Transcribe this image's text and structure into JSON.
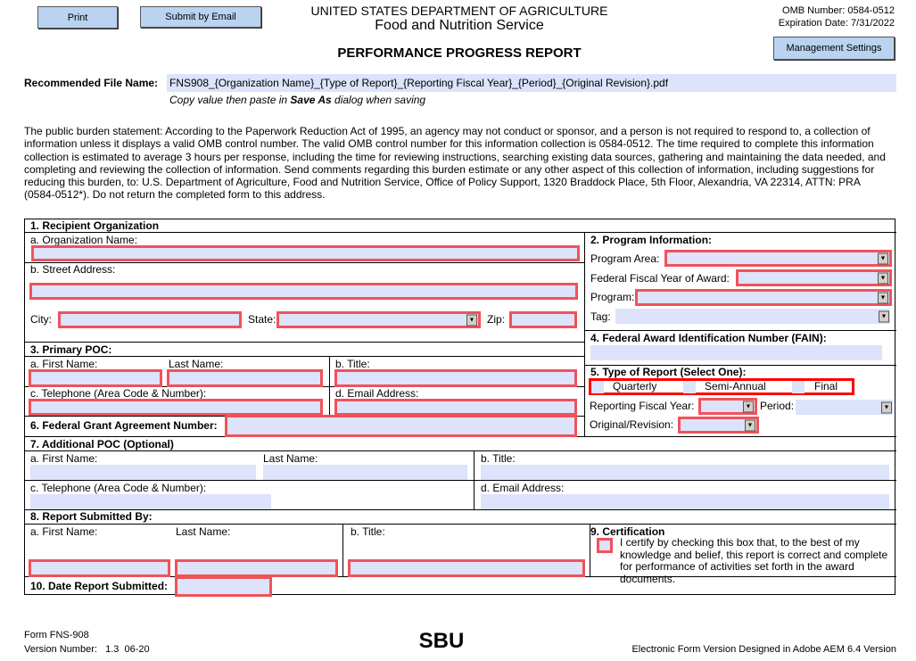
{
  "header": {
    "print": "Print",
    "submit_email": "Submit by Email",
    "dept": "UNITED STATES DEPARTMENT OF AGRICULTURE",
    "agency": "Food and Nutrition Service",
    "title": "PERFORMANCE PROGRESS REPORT",
    "omb": "OMB Number: 0584-0512",
    "expiration": "Expiration Date: 7/31/2022",
    "mgmt": "Management Settings"
  },
  "file": {
    "label": "Recommended File Name:",
    "value": "FNS908_{Organization Name}_{Type of Report}_{Reporting Fiscal Year}_{Period}_{Original Revision}.pdf",
    "note_pre": "Copy value then paste in ",
    "note_bold": "Save As",
    "note_post": " dialog when saving"
  },
  "burden": "The public burden statement: According to the Paperwork Reduction Act of 1995, an agency may not conduct or sponsor, and a person is not required to respond to, a collection of information unless it displays a valid OMB control number. The valid OMB control number for this information collection is 0584-0512. The time required to complete this information collection is estimated to average 3 hours per response, including the time for reviewing instructions, searching existing data sources, gathering and maintaining the data needed, and completing and reviewing the collection of information. Send comments regarding this burden estimate or any other aspect of this collection of information, including suggestions for reducing this burden, to: U.S. Department of Agriculture, Food and Nutrition Service, Office of Policy Support, 1320 Braddock Place, 5th Floor, Alexandria, VA 22314, ATTN: PRA (0584-0512*). Do not return the completed form to this address.",
  "s1": {
    "title": "1. Recipient Organization",
    "org": "a. Organization Name:",
    "street": "b. Street Address:",
    "city": "City:",
    "state": "State:",
    "zip": "Zip:"
  },
  "s2": {
    "title": "2. Program Information:",
    "area": "Program Area:",
    "ffy": "Federal Fiscal Year of Award:",
    "program": "Program:",
    "tag": "Tag:"
  },
  "s3": {
    "title": "3. Primary POC:",
    "first": "a. First Name:",
    "last": "Last Name:",
    "btitle": "b. Title:",
    "phone": "c. Telephone (Area Code & Number):",
    "email": "d. Email Address:"
  },
  "s4": {
    "title": "4. Federal Award Identification Number (FAIN):"
  },
  "s5": {
    "title": "5. Type of Report (Select One):",
    "options": [
      "Quarterly",
      "Semi-Annual",
      "Final"
    ],
    "rfy": "Reporting Fiscal Year:",
    "period": "Period:",
    "orig": "Original/Revision:"
  },
  "s6": {
    "title": "6. Federal Grant Agreement Number:"
  },
  "s7": {
    "title": "7. Additional POC (Optional)",
    "first": "a. First Name:",
    "last": "Last Name:",
    "btitle": "b. Title:",
    "phone": "c. Telephone (Area Code & Number):",
    "email": "d. Email Address:"
  },
  "s8": {
    "title": "8. Report Submitted By:",
    "first": "a. First Name:",
    "last": "Last Name:",
    "btitle": "b. Title:"
  },
  "s9": {
    "title": "9. Certification",
    "text": "I certify by checking this box that, to the best of my knowledge and belief, this report is correct and complete for performance of activities set forth in the award documents."
  },
  "s10": {
    "title": "10. Date Report Submitted:"
  },
  "footer": {
    "form": "Form FNS-908",
    "version": "Version Number:   1.3  06-20",
    "sbu": "SBU",
    "electronic": "Electronic Form Version Designed in Adobe AEM 6.4 Version"
  },
  "colors": {
    "field": "#dce3fb",
    "required_border": "#f0525a",
    "button": "#b9d3f0"
  }
}
